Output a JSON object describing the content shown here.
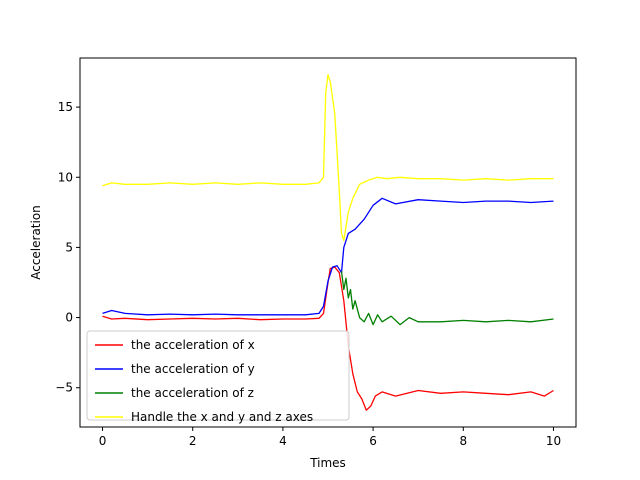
{
  "chart_data": {
    "type": "line",
    "title": "",
    "xlabel": "Times",
    "ylabel": "Acceleration",
    "xlim": [
      -0.5,
      10.5
    ],
    "ylim": [
      -7.8,
      18.5
    ],
    "xticks": [
      0,
      2,
      4,
      6,
      8,
      10
    ],
    "yticks": [
      -5,
      0,
      5,
      10,
      15
    ],
    "grid": false,
    "legend_position": "lower-left",
    "series": [
      {
        "name": "the acceleration of x",
        "color": "#ff0000",
        "points": [
          [
            0,
            0.1
          ],
          [
            0.2,
            -0.1
          ],
          [
            0.5,
            -0.05
          ],
          [
            1,
            -0.15
          ],
          [
            1.5,
            -0.1
          ],
          [
            2,
            -0.05
          ],
          [
            2.5,
            -0.1
          ],
          [
            3,
            -0.05
          ],
          [
            3.5,
            -0.15
          ],
          [
            4,
            -0.1
          ],
          [
            4.5,
            -0.1
          ],
          [
            4.8,
            -0.05
          ],
          [
            4.9,
            0.3
          ],
          [
            5.0,
            2.5
          ],
          [
            5.05,
            3.5
          ],
          [
            5.15,
            3.6
          ],
          [
            5.25,
            3.2
          ],
          [
            5.35,
            1.2
          ],
          [
            5.45,
            -2.0
          ],
          [
            5.55,
            -4.0
          ],
          [
            5.65,
            -5.3
          ],
          [
            5.75,
            -5.8
          ],
          [
            5.85,
            -6.6
          ],
          [
            5.95,
            -6.3
          ],
          [
            6.05,
            -5.6
          ],
          [
            6.2,
            -5.3
          ],
          [
            6.5,
            -5.6
          ],
          [
            7,
            -5.2
          ],
          [
            7.5,
            -5.4
          ],
          [
            8,
            -5.3
          ],
          [
            8.5,
            -5.4
          ],
          [
            9,
            -5.5
          ],
          [
            9.5,
            -5.3
          ],
          [
            9.8,
            -5.6
          ],
          [
            10,
            -5.2
          ]
        ]
      },
      {
        "name": "the acceleration of y",
        "color": "#0000ff",
        "points": [
          [
            0,
            0.3
          ],
          [
            0.2,
            0.5
          ],
          [
            0.5,
            0.3
          ],
          [
            1,
            0.2
          ],
          [
            1.5,
            0.25
          ],
          [
            2,
            0.2
          ],
          [
            2.5,
            0.25
          ],
          [
            3,
            0.2
          ],
          [
            3.5,
            0.2
          ],
          [
            4,
            0.2
          ],
          [
            4.5,
            0.2
          ],
          [
            4.8,
            0.3
          ],
          [
            4.9,
            0.8
          ],
          [
            5.0,
            2.6
          ],
          [
            5.1,
            3.6
          ],
          [
            5.2,
            3.7
          ],
          [
            5.3,
            3.2
          ],
          [
            5.35,
            5.0
          ],
          [
            5.45,
            6.0
          ],
          [
            5.6,
            6.3
          ],
          [
            5.8,
            7.0
          ],
          [
            6.0,
            8.0
          ],
          [
            6.2,
            8.5
          ],
          [
            6.5,
            8.1
          ],
          [
            7,
            8.4
          ],
          [
            7.5,
            8.3
          ],
          [
            8,
            8.2
          ],
          [
            8.5,
            8.3
          ],
          [
            9,
            8.3
          ],
          [
            9.5,
            8.2
          ],
          [
            10,
            8.3
          ]
        ]
      },
      {
        "name": "the acceleration of z",
        "color": "#008000",
        "points": [
          [
            5.3,
            3.3
          ],
          [
            5.35,
            2.0
          ],
          [
            5.4,
            2.8
          ],
          [
            5.45,
            1.4
          ],
          [
            5.5,
            2.0
          ],
          [
            5.55,
            0.6
          ],
          [
            5.6,
            1.2
          ],
          [
            5.7,
            0.0
          ],
          [
            5.8,
            -0.3
          ],
          [
            5.9,
            0.3
          ],
          [
            6.0,
            -0.5
          ],
          [
            6.1,
            0.2
          ],
          [
            6.2,
            -0.3
          ],
          [
            6.4,
            0.1
          ],
          [
            6.6,
            -0.5
          ],
          [
            6.8,
            0.0
          ],
          [
            7,
            -0.3
          ],
          [
            7.5,
            -0.3
          ],
          [
            8,
            -0.2
          ],
          [
            8.5,
            -0.3
          ],
          [
            9,
            -0.2
          ],
          [
            9.5,
            -0.3
          ],
          [
            10,
            -0.1
          ]
        ]
      },
      {
        "name": "Handle the x and y and z axes",
        "color": "#ffff00",
        "points": [
          [
            0,
            9.4
          ],
          [
            0.2,
            9.6
          ],
          [
            0.5,
            9.5
          ],
          [
            1,
            9.5
          ],
          [
            1.5,
            9.6
          ],
          [
            2,
            9.5
          ],
          [
            2.5,
            9.6
          ],
          [
            3,
            9.5
          ],
          [
            3.5,
            9.6
          ],
          [
            4,
            9.5
          ],
          [
            4.5,
            9.5
          ],
          [
            4.8,
            9.6
          ],
          [
            4.9,
            10.0
          ],
          [
            4.95,
            16.0
          ],
          [
            5.0,
            17.3
          ],
          [
            5.05,
            16.8
          ],
          [
            5.15,
            14.5
          ],
          [
            5.25,
            9.0
          ],
          [
            5.3,
            6.0
          ],
          [
            5.35,
            5.5
          ],
          [
            5.45,
            7.5
          ],
          [
            5.55,
            8.5
          ],
          [
            5.7,
            9.5
          ],
          [
            5.9,
            9.8
          ],
          [
            6.1,
            10.0
          ],
          [
            6.3,
            9.9
          ],
          [
            6.6,
            10.0
          ],
          [
            7,
            9.9
          ],
          [
            7.5,
            9.9
          ],
          [
            8,
            9.8
          ],
          [
            8.5,
            9.9
          ],
          [
            9,
            9.8
          ],
          [
            9.5,
            9.9
          ],
          [
            10,
            9.9
          ]
        ]
      }
    ]
  }
}
